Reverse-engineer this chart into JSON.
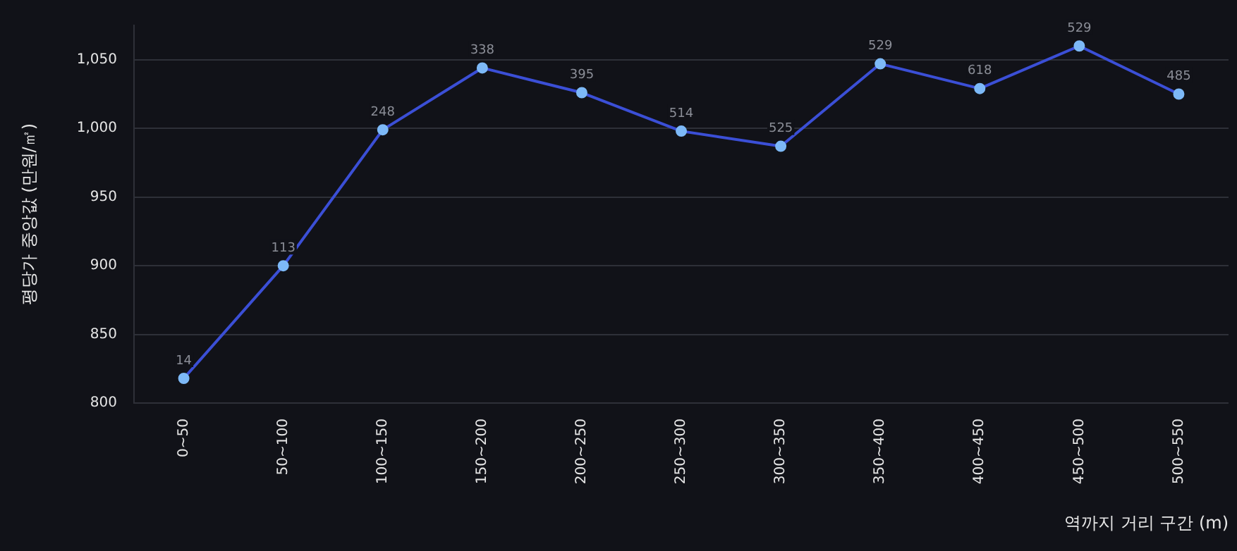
{
  "chart_data": {
    "type": "line",
    "xlabel": "역까지 거리 구간 (m)",
    "ylabel": "평당가 중앙값 (만원/㎡)",
    "categories": [
      "0~50",
      "50~100",
      "100~150",
      "150~200",
      "200~250",
      "250~300",
      "300~350",
      "350~400",
      "400~450",
      "450~500",
      "500~550"
    ],
    "series": [
      {
        "color": "#3b4fd6",
        "values": [
          818,
          900,
          999,
          1044,
          1026,
          998,
          987,
          1047,
          1029,
          1060,
          1025
        ]
      }
    ],
    "annotations": [
      {
        "text": "14",
        "x": "0~50",
        "y": 818
      },
      {
        "text": "113",
        "x": "50~100",
        "y": 900
      },
      {
        "text": "248",
        "x": "100~150",
        "y": 999
      },
      {
        "text": "338",
        "x": "150~200",
        "y": 1044
      },
      {
        "text": "395",
        "x": "200~250",
        "y": 1026
      },
      {
        "text": "514",
        "x": "250~300",
        "y": 998
      },
      {
        "text": "525",
        "x": "300~350",
        "y": 987
      },
      {
        "text": "529",
        "x": "350~400",
        "y": 1047
      },
      {
        "text": "618",
        "x": "400~450",
        "y": 1029
      },
      {
        "text": "529",
        "x": "450~500",
        "y": 1060
      },
      {
        "text": "485",
        "x": "500~550",
        "y": 1025
      }
    ],
    "ylim": [
      800,
      1075
    ],
    "yticks": [
      800,
      850,
      900,
      950,
      {
        "value": 1000,
        "label": "1,000"
      },
      {
        "value": 1050,
        "label": "1,050"
      }
    ],
    "grid": "y",
    "marker": "circle",
    "legend": false
  }
}
